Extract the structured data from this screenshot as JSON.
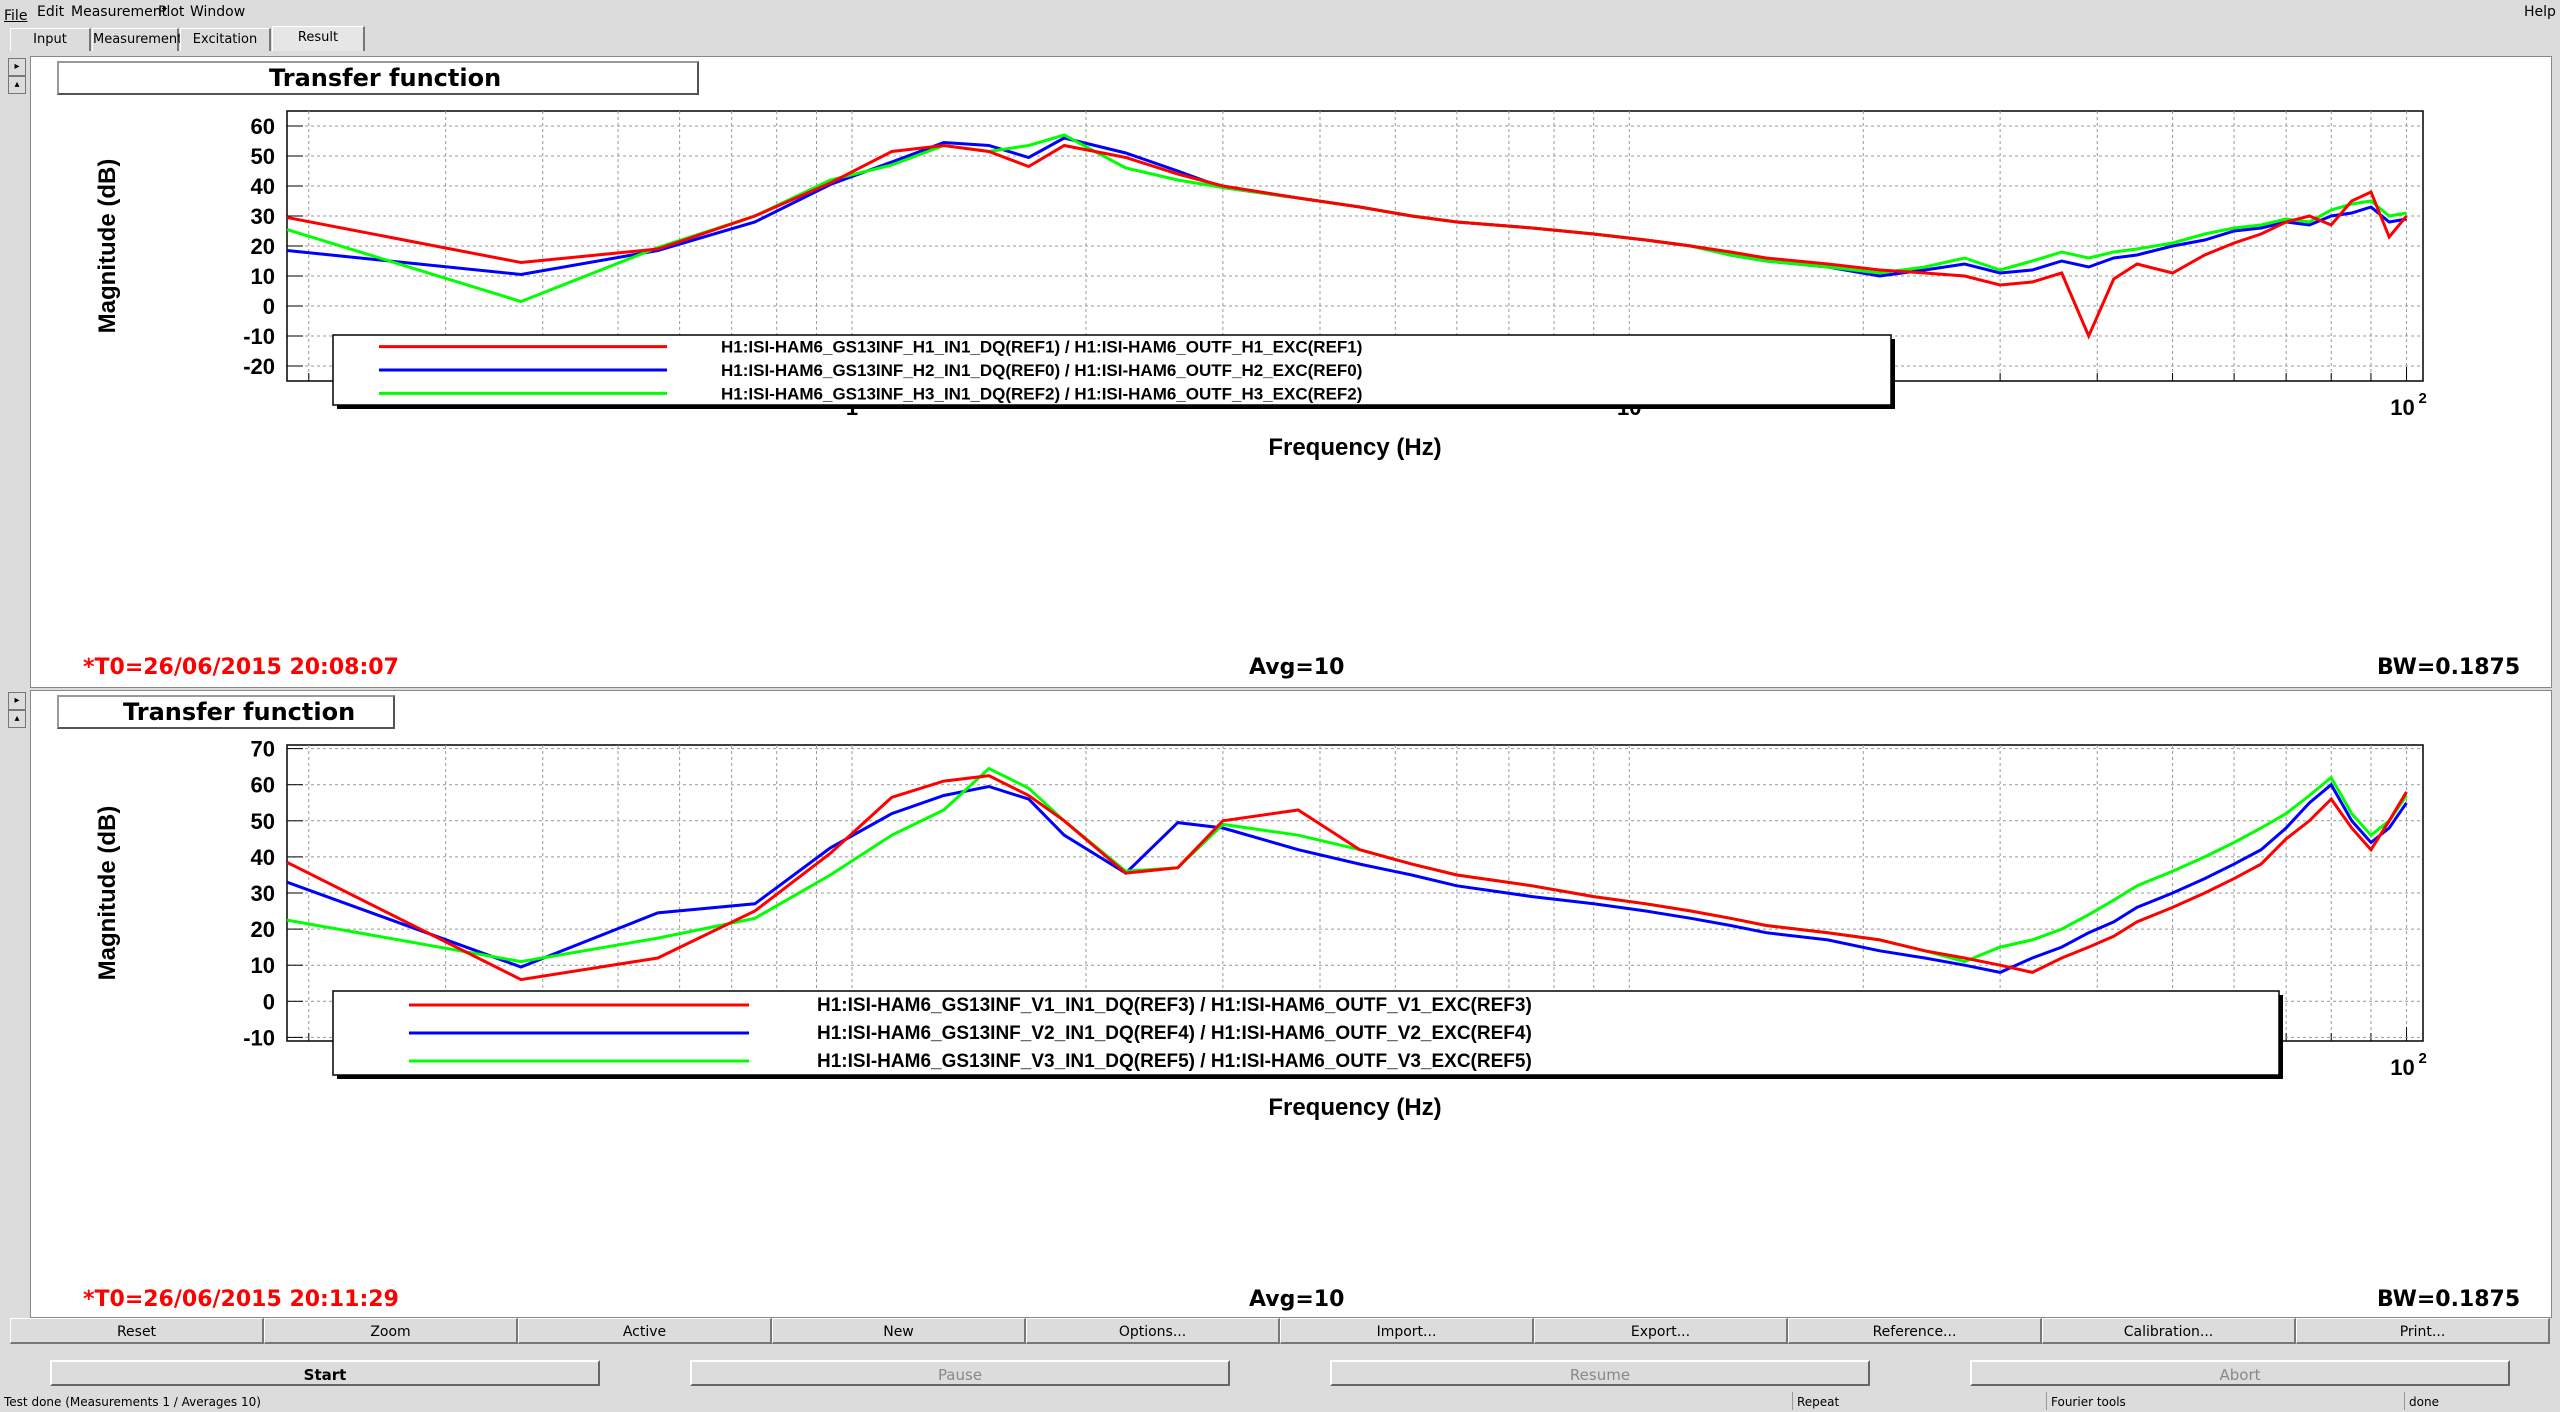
{
  "menu": {
    "file": "File",
    "edit": "Edit",
    "measurement": "Measurement",
    "plot": "Plot",
    "window": "Window",
    "help": "Help"
  },
  "tabs": [
    "Input",
    "Measurement",
    "Excitation",
    "Result"
  ],
  "plots": [
    {
      "title": "Transfer function",
      "t0": "*T0=26/06/2015 20:08:07",
      "avg": "Avg=10",
      "bw": "BW=0.1875",
      "xlabel": "Frequency (Hz)",
      "ylabel": "Magnitude (dB)",
      "yticks": [
        "60",
        "50",
        "40",
        "30",
        "20",
        "10",
        "0",
        "-10",
        "-20"
      ],
      "xticks": [
        "1",
        "10",
        "10",
        "2"
      ],
      "legend": [
        {
          "text": "H1:ISI-HAM6_GS13INF_H1_IN1_DQ(REF1) / H1:ISI-HAM6_OUTF_H1_EXC(REF1)",
          "color": "#ff0000"
        },
        {
          "text": "H1:ISI-HAM6_GS13INF_H2_IN1_DQ(REF0) / H1:ISI-HAM6_OUTF_H2_EXC(REF0)",
          "color": "#0000ff"
        },
        {
          "text": "H1:ISI-HAM6_GS13INF_H3_IN1_DQ(REF2) / H1:ISI-HAM6_OUTF_H3_EXC(REF2)",
          "color": "#00ff00"
        }
      ]
    },
    {
      "title": "Transfer function",
      "t0": "*T0=26/06/2015 20:11:29",
      "avg": "Avg=10",
      "bw": "BW=0.1875",
      "xlabel": "Frequency (Hz)",
      "ylabel": "Magnitude (dB)",
      "yticks": [
        "70",
        "60",
        "50",
        "40",
        "30",
        "20",
        "10",
        "0",
        "-10"
      ],
      "xticks": [
        "1",
        "10",
        "10",
        "2"
      ],
      "legend": [
        {
          "text": "H1:ISI-HAM6_GS13INF_V1_IN1_DQ(REF3) / H1:ISI-HAM6_OUTF_V1_EXC(REF3)",
          "color": "#ff0000"
        },
        {
          "text": "H1:ISI-HAM6_GS13INF_V2_IN1_DQ(REF4) / H1:ISI-HAM6_OUTF_V2_EXC(REF4)",
          "color": "#0000ff"
        },
        {
          "text": "H1:ISI-HAM6_GS13INF_V3_IN1_DQ(REF5) / H1:ISI-HAM6_OUTF_V3_EXC(REF5)",
          "color": "#00ff00"
        }
      ]
    }
  ],
  "toolbar": [
    "Reset",
    "Zoom",
    "Active",
    "New",
    "Options...",
    "Import...",
    "Export...",
    "Reference...",
    "Calibration...",
    "Print..."
  ],
  "controls": [
    "Start",
    "Pause",
    "Resume",
    "Abort"
  ],
  "status": {
    "left": "Test done (Measurements 1 / Averages 10)",
    "repeat": "Repeat",
    "tools": "Fourier tools",
    "state": "done"
  },
  "chart_data": [
    {
      "type": "line",
      "title": "Transfer function",
      "xlabel": "Frequency (Hz)",
      "ylabel": "Magnitude (dB)",
      "xscale": "log",
      "xlim": [
        0.1875,
        105
      ],
      "ylim": [
        -25,
        65
      ],
      "legend": "bottom-left inside",
      "grid": true,
      "series": [
        {
          "name": "H1:ISI-HAM6_GS13INF_H1_IN1_DQ(REF1) / H1:ISI-HAM6_OUTF_H1_EXC(REF1)",
          "color": "#ff0000",
          "x": [
            0.1875,
            0.375,
            0.5625,
            0.75,
            0.9375,
            1.125,
            1.3125,
            1.5,
            1.6875,
            1.875,
            2.25,
            2.625,
            3.0,
            3.75,
            4.5,
            5.25,
            6.0,
            7.5,
            9.0,
            10.5,
            12.0,
            13.5,
            15.0,
            18.0,
            21.0,
            24.0,
            27.0,
            30.0,
            33.0,
            36.0,
            39.0,
            42.0,
            45.0,
            50.0,
            55.0,
            60.0,
            65.0,
            70.0,
            75.0,
            80.0,
            85.0,
            90.0,
            95.0,
            100.0
          ],
          "y": [
            29.5,
            14.5,
            19,
            30,
            41,
            51.5,
            53.5,
            51.5,
            46.5,
            53.5,
            49.5,
            44,
            40,
            36,
            33,
            30,
            28,
            26,
            24,
            22,
            20,
            18,
            16,
            14,
            12,
            11,
            10,
            7,
            8,
            11,
            -10,
            9,
            14,
            11,
            17,
            21,
            24,
            28,
            30,
            27,
            35,
            38,
            23,
            30
          ]
        },
        {
          "name": "H1:ISI-HAM6_GS13INF_H2_IN1_DQ(REF0) / H1:ISI-HAM6_OUTF_H2_EXC(REF0)",
          "color": "#0000ff",
          "x": [
            0.1875,
            0.375,
            0.5625,
            0.75,
            0.9375,
            1.125,
            1.3125,
            1.5,
            1.6875,
            1.875,
            2.25,
            2.625,
            3.0,
            3.75,
            4.5,
            5.25,
            6.0,
            7.5,
            9.0,
            10.5,
            12.0,
            13.5,
            15.0,
            18.0,
            21.0,
            24.0,
            27.0,
            30.0,
            33.0,
            36.0,
            39.0,
            42.0,
            45.0,
            50.0,
            55.0,
            60.0,
            65.0,
            70.0,
            75.0,
            80.0,
            85.0,
            90.0,
            95.0,
            100.0
          ],
          "y": [
            18.5,
            10.5,
            18.5,
            28,
            40.5,
            48,
            54.5,
            53.5,
            49.5,
            56,
            51,
            45,
            39.5,
            36,
            33,
            30,
            28,
            26,
            24,
            22,
            20,
            17,
            15,
            13,
            10,
            12,
            14,
            11,
            12,
            15,
            13,
            16,
            17,
            20,
            22,
            25,
            26,
            28,
            27,
            30,
            31,
            33,
            28,
            29
          ]
        },
        {
          "name": "H1:ISI-HAM6_GS13INF_H3_IN1_DQ(REF2) / H1:ISI-HAM6_OUTF_H3_EXC(REF2)",
          "color": "#00ff00",
          "x": [
            0.1875,
            0.375,
            0.5625,
            0.75,
            0.9375,
            1.125,
            1.3125,
            1.5,
            1.6875,
            1.875,
            2.25,
            2.625,
            3.0,
            3.75,
            4.5,
            5.25,
            6.0,
            7.5,
            9.0,
            10.5,
            12.0,
            13.5,
            15.0,
            18.0,
            21.0,
            24.0,
            27.0,
            30.0,
            33.0,
            36.0,
            39.0,
            42.0,
            45.0,
            50.0,
            55.0,
            60.0,
            65.0,
            70.0,
            75.0,
            80.0,
            85.0,
            90.0,
            95.0,
            100.0
          ],
          "y": [
            25.5,
            1.5,
            19.5,
            30,
            42,
            47,
            53.5,
            51.5,
            53.5,
            57,
            46,
            42,
            39.5,
            36,
            33,
            30,
            28,
            26,
            24,
            22,
            20,
            17,
            15,
            13,
            11,
            13,
            16,
            12,
            15,
            18,
            16,
            18,
            19,
            21,
            24,
            26,
            27,
            29,
            28,
            32,
            34,
            35,
            30,
            31
          ]
        }
      ]
    },
    {
      "type": "line",
      "title": "Transfer function",
      "xlabel": "Frequency (Hz)",
      "ylabel": "Magnitude (dB)",
      "xscale": "log",
      "xlim": [
        0.1875,
        105
      ],
      "ylim": [
        -11,
        71
      ],
      "legend": "bottom-center inside",
      "grid": true,
      "series": [
        {
          "name": "H1:ISI-HAM6_GS13INF_V1_IN1_DQ(REF3) / H1:ISI-HAM6_OUTF_V1_EXC(REF3)",
          "color": "#ff0000",
          "x": [
            0.1875,
            0.375,
            0.5625,
            0.75,
            0.9375,
            1.125,
            1.3125,
            1.5,
            1.6875,
            1.875,
            2.25,
            2.625,
            3.0,
            3.75,
            4.5,
            5.25,
            6.0,
            7.5,
            9.0,
            10.5,
            12.0,
            13.5,
            15.0,
            18.0,
            21.0,
            24.0,
            27.0,
            30.0,
            33.0,
            36.0,
            39.0,
            42.0,
            45.0,
            50.0,
            55.0,
            60.0,
            65.0,
            70.0,
            75.0,
            80.0,
            85.0,
            90.0,
            95.0,
            100.0
          ],
          "y": [
            38.5,
            6,
            12,
            25,
            41,
            56.5,
            61,
            62.5,
            57,
            50,
            35.5,
            37,
            50,
            53,
            42,
            38,
            35,
            32,
            29,
            27,
            25,
            23,
            21,
            19,
            17,
            14,
            12,
            10,
            8,
            12,
            15,
            18,
            22,
            26,
            30,
            34,
            38,
            45,
            50,
            56,
            48,
            42,
            50,
            58
          ]
        },
        {
          "name": "H1:ISI-HAM6_GS13INF_V2_IN1_DQ(REF4) / H1:ISI-HAM6_OUTF_V2_EXC(REF4)",
          "color": "#0000ff",
          "x": [
            0.1875,
            0.375,
            0.5625,
            0.75,
            0.9375,
            1.125,
            1.3125,
            1.5,
            1.6875,
            1.875,
            2.25,
            2.625,
            3.0,
            3.75,
            4.5,
            5.25,
            6.0,
            7.5,
            9.0,
            10.5,
            12.0,
            13.5,
            15.0,
            18.0,
            21.0,
            24.0,
            27.0,
            30.0,
            33.0,
            36.0,
            39.0,
            42.0,
            45.0,
            50.0,
            55.0,
            60.0,
            65.0,
            70.0,
            75.0,
            80.0,
            85.0,
            90.0,
            95.0,
            100.0
          ],
          "y": [
            33,
            9.5,
            24.5,
            27,
            42.5,
            52,
            57,
            59.5,
            56,
            46,
            35.5,
            49.5,
            48,
            42,
            38,
            35,
            32,
            29,
            27,
            25,
            23,
            21,
            19,
            17,
            14,
            12,
            10,
            8,
            12,
            15,
            19,
            22,
            26,
            30,
            34,
            38,
            42,
            48,
            55,
            60,
            50,
            44,
            48,
            55
          ]
        },
        {
          "name": "H1:ISI-HAM6_GS13INF_V3_IN1_DQ(REF5) / H1:ISI-HAM6_OUTF_V3_EXC(REF5)",
          "color": "#00ff00",
          "x": [
            0.1875,
            0.375,
            0.5625,
            0.75,
            0.9375,
            1.125,
            1.3125,
            1.5,
            1.6875,
            1.875,
            2.25,
            2.625,
            3.0,
            3.75,
            4.5,
            5.25,
            6.0,
            7.5,
            9.0,
            10.5,
            12.0,
            13.5,
            15.0,
            18.0,
            21.0,
            24.0,
            27.0,
            30.0,
            33.0,
            36.0,
            39.0,
            42.0,
            45.0,
            50.0,
            55.0,
            60.0,
            65.0,
            70.0,
            75.0,
            80.0,
            85.0,
            90.0,
            95.0,
            100.0
          ],
          "y": [
            22.5,
            11,
            17.5,
            23,
            35,
            46,
            53,
            64.5,
            59,
            50,
            36,
            37,
            49,
            46,
            42,
            38,
            35,
            32,
            29,
            27,
            25,
            23,
            21,
            19,
            17,
            14,
            11,
            15,
            17,
            20,
            24,
            28,
            32,
            36,
            40,
            44,
            48,
            52,
            57,
            62,
            52,
            46,
            50,
            57
          ]
        }
      ]
    }
  ]
}
